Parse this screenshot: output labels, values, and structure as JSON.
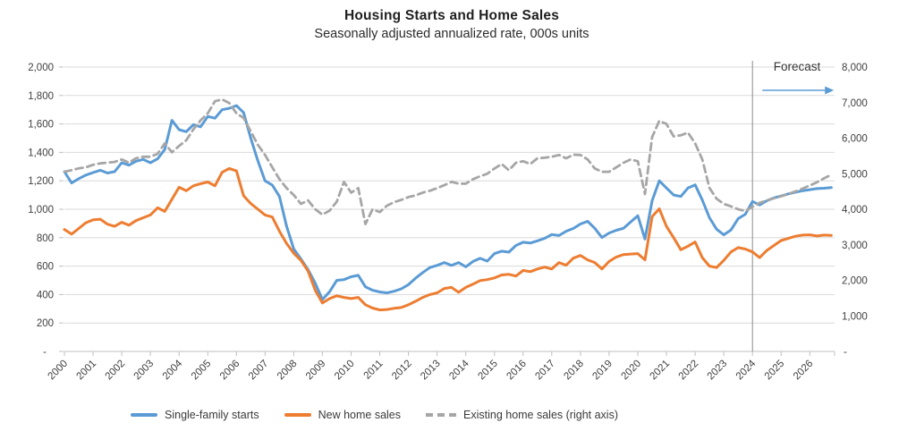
{
  "header": {
    "title": "Housing Starts and Home Sales",
    "subtitle": "Seasonally adjusted annualized rate, 000s units"
  },
  "annotations": {
    "forecast_label": "Forecast"
  },
  "legend": [
    {
      "label": "Single-family starts",
      "color": "#5B9BD5",
      "style": "solid"
    },
    {
      "label": "New home sales",
      "color": "#ED7D31",
      "style": "solid"
    },
    {
      "label": "Existing home sales (right axis)",
      "color": "#A6A6A6",
      "style": "dashed"
    }
  ],
  "chart_data": {
    "type": "line",
    "title": "Housing Starts and Home Sales",
    "subtitle": "Seasonally adjusted annualized rate, 000s units",
    "grid": "horizontal",
    "legend_position": "bottom",
    "x_start": 2000,
    "x_step": 0.25,
    "x_tick_labels": [
      "2000",
      "2001",
      "2002",
      "2003",
      "2004",
      "2005",
      "2006",
      "2007",
      "2008",
      "2009",
      "2010",
      "2011",
      "2012",
      "2013",
      "2014",
      "2015",
      "2016",
      "2017",
      "2018",
      "2019",
      "2020",
      "2021",
      "2022",
      "2023",
      "2024",
      "2025",
      "2026"
    ],
    "left_axis": {
      "min": 0,
      "max": 2000,
      "step": 200,
      "zero_label": "-"
    },
    "right_axis": {
      "min": 0,
      "max": 8000,
      "step": 1000,
      "zero_label": "-"
    },
    "forecast": {
      "label": "Forecast",
      "line_x": 2024
    },
    "series": [
      {
        "name": "Single-family starts",
        "axis": "left",
        "color": "#5B9BD5",
        "dash": false,
        "values": [
          1264,
          1185,
          1215,
          1240,
          1258,
          1274,
          1255,
          1264,
          1327,
          1310,
          1338,
          1350,
          1327,
          1355,
          1420,
          1625,
          1560,
          1545,
          1595,
          1580,
          1653,
          1640,
          1700,
          1710,
          1729,
          1680,
          1500,
          1340,
          1200,
          1170,
          1090,
          880,
          720,
          650,
          575,
          480,
          365,
          420,
          500,
          505,
          525,
          535,
          455,
          430,
          418,
          412,
          423,
          440,
          470,
          515,
          555,
          590,
          605,
          625,
          605,
          625,
          595,
          633,
          655,
          635,
          688,
          705,
          698,
          745,
          768,
          762,
          778,
          795,
          822,
          815,
          845,
          865,
          896,
          915,
          866,
          801,
          833,
          852,
          866,
          910,
          955,
          790,
          1060,
          1200,
          1150,
          1100,
          1090,
          1150,
          1172,
          1065,
          940,
          860,
          820,
          855,
          934,
          965,
          1055,
          1030,
          1060,
          1080,
          1093,
          1108,
          1120,
          1130,
          1138,
          1145,
          1148,
          1152
        ]
      },
      {
        "name": "New home sales",
        "axis": "left",
        "color": "#ED7D31",
        "dash": false,
        "values": [
          858,
          825,
          865,
          905,
          925,
          930,
          895,
          880,
          908,
          888,
          920,
          940,
          960,
          1010,
          985,
          1070,
          1155,
          1130,
          1165,
          1180,
          1192,
          1165,
          1260,
          1287,
          1270,
          1095,
          1040,
          1000,
          960,
          945,
          845,
          760,
          690,
          640,
          565,
          430,
          341,
          372,
          391,
          380,
          372,
          380,
          328,
          305,
          292,
          295,
          303,
          309,
          328,
          353,
          380,
          400,
          412,
          443,
          450,
          416,
          450,
          473,
          498,
          505,
          517,
          538,
          542,
          530,
          570,
          561,
          580,
          593,
          580,
          625,
          606,
          656,
          675,
          644,
          625,
          580,
          633,
          664,
          681,
          685,
          688,
          644,
          948,
          1003,
          880,
          800,
          715,
          740,
          770,
          660,
          600,
          590,
          640,
          700,
          730,
          720,
          700,
          660,
          710,
          745,
          780,
          795,
          810,
          818,
          820,
          812,
          818,
          816
        ]
      },
      {
        "name": "Existing home sales (right axis)",
        "axis": "right",
        "color": "#A6A6A6",
        "dash": true,
        "values": [
          5055,
          5100,
          5150,
          5181,
          5250,
          5290,
          5310,
          5330,
          5400,
          5310,
          5434,
          5476,
          5476,
          5560,
          5854,
          5602,
          5780,
          5940,
          6250,
          6500,
          6700,
          7040,
          7090,
          6989,
          6700,
          6570,
          6190,
          5812,
          5527,
          5181,
          4845,
          4593,
          4400,
          4150,
          4250,
          4000,
          3850,
          3962,
          4215,
          4770,
          4467,
          4593,
          3583,
          4000,
          3919,
          4100,
          4200,
          4265,
          4341,
          4391,
          4467,
          4520,
          4593,
          4677,
          4770,
          4719,
          4719,
          4845,
          4929,
          5000,
          5148,
          5274,
          5097,
          5308,
          5350,
          5274,
          5434,
          5450,
          5476,
          5527,
          5434,
          5535,
          5527,
          5400,
          5148,
          5055,
          5055,
          5181,
          5308,
          5400,
          5350,
          4425,
          6030,
          6485,
          6400,
          6050,
          6080,
          6157,
          5854,
          5400,
          4600,
          4298,
          4150,
          4080,
          4000,
          3950,
          4071,
          4180,
          4250,
          4310,
          4366,
          4430,
          4500,
          4580,
          4670,
          4760,
          4870,
          4971
        ]
      }
    ]
  }
}
